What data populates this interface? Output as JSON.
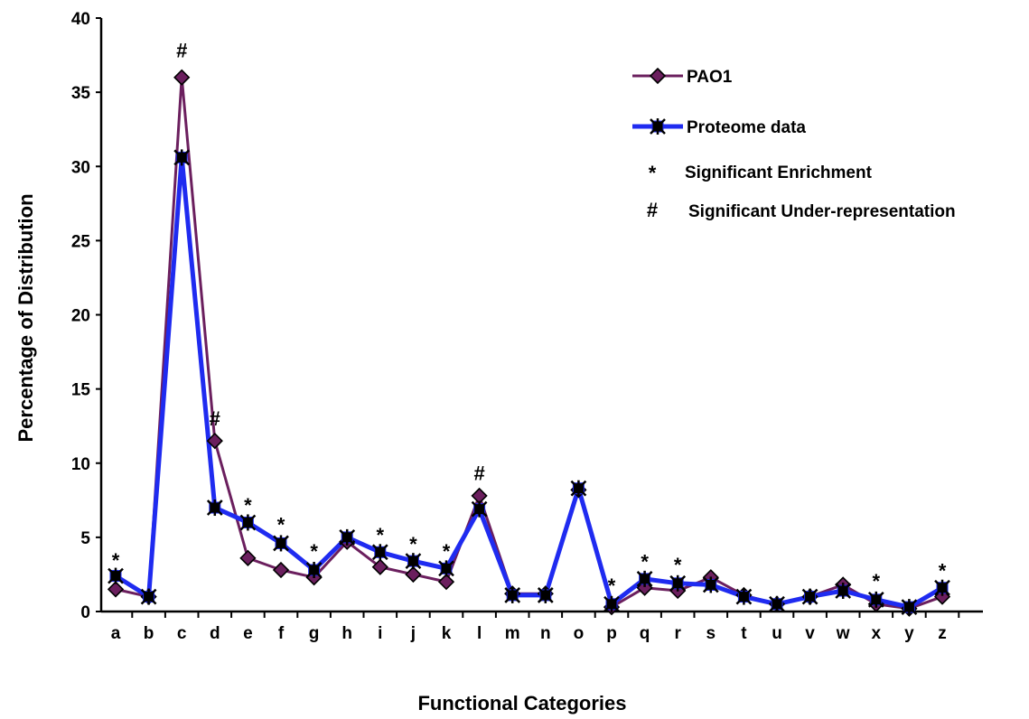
{
  "chart_data": {
    "type": "line",
    "xlabel": "Functional Categories",
    "ylabel": "Percentage of Distribution",
    "ylim": [
      0,
      40
    ],
    "yticks": [
      0,
      5,
      10,
      15,
      20,
      25,
      30,
      35,
      40
    ],
    "categories": [
      "a",
      "b",
      "c",
      "d",
      "e",
      "f",
      "g",
      "h",
      "i",
      "j",
      "k",
      "l",
      "m",
      "n",
      "o",
      "p",
      "q",
      "r",
      "s",
      "t",
      "u",
      "v",
      "w",
      "x",
      "y",
      "z"
    ],
    "series": [
      {
        "name": "PAO1",
        "color": "#6b1f5e",
        "marker": "diamond",
        "values": [
          1.5,
          1.0,
          36.0,
          11.5,
          3.6,
          2.8,
          2.3,
          4.7,
          3.0,
          2.5,
          2.0,
          7.8,
          1.2,
          1.2,
          8.2,
          0.3,
          1.6,
          1.4,
          2.3,
          1.1,
          0.5,
          1.0,
          1.8,
          0.5,
          0.2,
          1.0
        ]
      },
      {
        "name": "Proteome data",
        "color": "#1f2bf0",
        "marker": "star",
        "values": [
          2.4,
          1.0,
          30.6,
          7.0,
          6.0,
          4.6,
          2.8,
          5.0,
          4.0,
          3.4,
          2.9,
          6.9,
          1.1,
          1.1,
          8.3,
          0.5,
          2.2,
          1.9,
          1.8,
          1.0,
          0.5,
          1.0,
          1.4,
          0.8,
          0.3,
          1.6
        ]
      }
    ],
    "annotations": [
      {
        "symbol": "*",
        "category": "a",
        "y": 3.6
      },
      {
        "symbol": "#",
        "category": "c",
        "y": 37.6
      },
      {
        "symbol": "#",
        "category": "d",
        "y": 12.8
      },
      {
        "symbol": "*",
        "category": "e",
        "y": 7.3
      },
      {
        "symbol": "*",
        "category": "f",
        "y": 6.0
      },
      {
        "symbol": "*",
        "category": "g",
        "y": 4.2
      },
      {
        "symbol": "*",
        "category": "i",
        "y": 5.3
      },
      {
        "symbol": "*",
        "category": "j",
        "y": 4.7
      },
      {
        "symbol": "*",
        "category": "k",
        "y": 4.2
      },
      {
        "symbol": "#",
        "category": "l",
        "y": 9.1
      },
      {
        "symbol": "*",
        "category": "p",
        "y": 1.9
      },
      {
        "symbol": "*",
        "category": "q",
        "y": 3.5
      },
      {
        "symbol": "*",
        "category": "r",
        "y": 3.3
      },
      {
        "symbol": "*",
        "category": "x",
        "y": 2.2
      },
      {
        "symbol": "*",
        "category": "z",
        "y": 2.9
      }
    ],
    "legend": {
      "placement": "top-right",
      "entries": [
        {
          "kind": "series",
          "label": "PAO1"
        },
        {
          "kind": "series",
          "label": "Proteome data"
        },
        {
          "kind": "symbol",
          "symbol": "*",
          "label": "Significant Enrichment"
        },
        {
          "kind": "symbol",
          "symbol": "#",
          "label": "Significant Under-representation"
        }
      ]
    }
  }
}
